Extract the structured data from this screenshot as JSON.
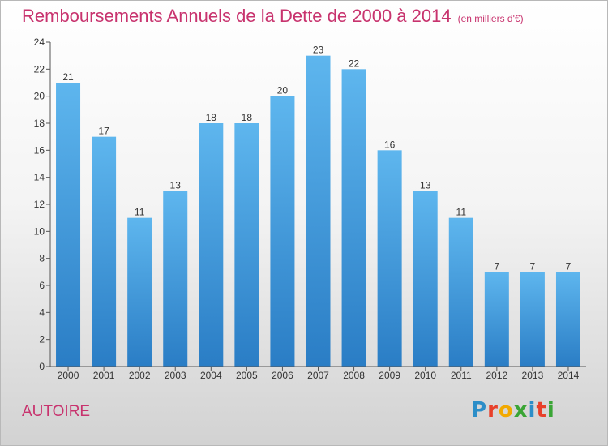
{
  "title": "Remboursements Annuels de la Dette de 2000 à 2014",
  "subtitle": "(en milliers d'€)",
  "city": "AUTOIRE",
  "logo": {
    "letters": [
      "P",
      "r",
      "o",
      "x",
      "i",
      "t",
      "i"
    ],
    "colors": [
      "#2c8ec8",
      "#e8402a",
      "#f2a900",
      "#3aa535",
      "#2c8ec8",
      "#e8402a",
      "#3aa535"
    ]
  },
  "colors": {
    "title": "#c8336e",
    "bar_light": "#5eb6ee",
    "bar_dark": "#2a7dc5",
    "label": "#333333"
  },
  "chart_data": {
    "type": "bar",
    "categories": [
      "2000",
      "2001",
      "2002",
      "2003",
      "2004",
      "2005",
      "2006",
      "2007",
      "2008",
      "2009",
      "2010",
      "2011",
      "2012",
      "2013",
      "2014"
    ],
    "values": [
      21,
      17,
      11,
      13,
      18,
      18,
      20,
      23,
      22,
      16,
      13,
      11,
      7,
      7,
      7
    ],
    "yticks": [
      0,
      2,
      4,
      6,
      8,
      10,
      12,
      14,
      16,
      18,
      20,
      22,
      24
    ],
    "ylim": [
      0,
      24
    ],
    "grid": false,
    "legend": "none"
  }
}
